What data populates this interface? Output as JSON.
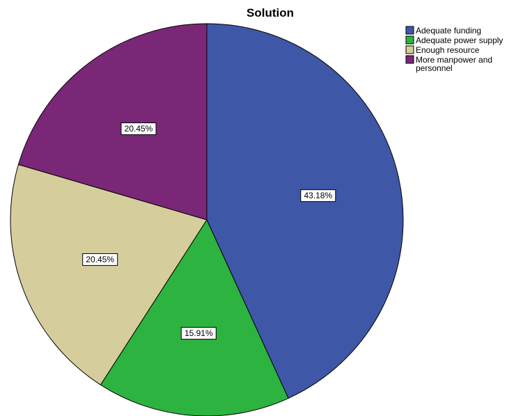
{
  "chart_data": {
    "type": "pie",
    "title": "Solution",
    "slices": [
      {
        "label": "Adequate funding",
        "value": 43.18,
        "color": "#3F57A7"
      },
      {
        "label": "Adequate power supply",
        "value": 15.91,
        "color": "#2DB33F"
      },
      {
        "label": "Enough resource",
        "value": 20.45,
        "color": "#D5CD9B"
      },
      {
        "label": "More manpower and personnel",
        "value": 20.45,
        "color": "#7A2777"
      }
    ],
    "data_labels": [
      "43.18%",
      "15.91%",
      "20.45%",
      "20.45%"
    ],
    "legend": {
      "placement": "top-right",
      "entries": [
        {
          "lines": [
            "Adequate funding"
          ]
        },
        {
          "lines": [
            "Adequate power supply"
          ]
        },
        {
          "lines": [
            "Enough resource"
          ]
        },
        {
          "lines": [
            "More manpower and",
            "personnel"
          ]
        }
      ]
    },
    "start_angle": "12 o'clock",
    "direction": "clockwise"
  }
}
